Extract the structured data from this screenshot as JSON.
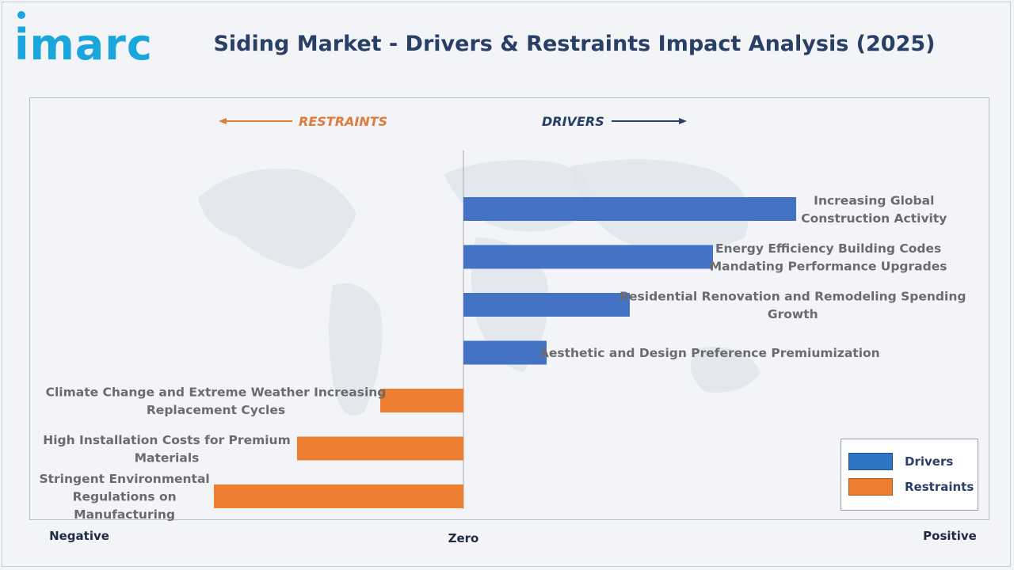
{
  "header": {
    "logo_text": "imarc",
    "title": "Siding Market - Drivers & Restraints Impact Analysis (2025)"
  },
  "chart_data": {
    "type": "bar",
    "orientation": "horizontal",
    "title": "Siding Market - Drivers & Restraints Impact Analysis (2025)",
    "direction_labels": {
      "left": "RESTRAINTS",
      "right": "DRIVERS"
    },
    "axis_labels": {
      "negative": "Negative",
      "zero": "Zero",
      "positive": "Positive"
    },
    "xlim": [
      -3,
      4
    ],
    "series": [
      {
        "name": "Drivers",
        "color": "#4472c4",
        "items": [
          {
            "label": [
              "Increasing Global",
              "Construction Activity"
            ],
            "value": 4.0
          },
          {
            "label": [
              "Energy Efficiency Building Codes",
              "Mandating Performance Upgrades"
            ],
            "value": 3.0
          },
          {
            "label": [
              "Residential Renovation and Remodeling Spending",
              "Growth"
            ],
            "value": 2.0
          },
          {
            "label": [
              "Aesthetic and Design Preference Premiumization"
            ],
            "value": 1.0
          }
        ]
      },
      {
        "name": "Restraints",
        "color": "#ed7d31",
        "items": [
          {
            "label": [
              "Climate Change and Extreme Weather Increasing",
              "Replacement Cycles"
            ],
            "value": -1.0
          },
          {
            "label": [
              "High Installation Costs for Premium",
              "Materials"
            ],
            "value": -2.0
          },
          {
            "label": [
              "Stringent Environmental",
              "Regulations on",
              "Manufacturing"
            ],
            "value": -3.0
          }
        ]
      }
    ],
    "legend": {
      "position": "bottom-right",
      "entries": [
        "Drivers",
        "Restraints"
      ]
    },
    "legend_colors": {
      "Drivers": "#2e75c6",
      "Restraints": "#ed7d31"
    },
    "arrow_colors": {
      "restraints": "#e07b39",
      "drivers": "#2a3f66"
    }
  }
}
